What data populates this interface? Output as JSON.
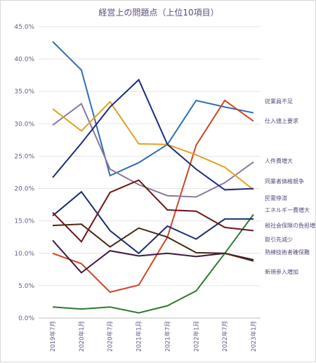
{
  "chart_data": {
    "type": "line",
    "title": "経営上の問題点（上位10項目）",
    "categories": [
      "2019年7月",
      "2020年1月",
      "2020年7月",
      "2021年1月",
      "2021年7月",
      "2022年1月",
      "2022年7月",
      "2023年1月"
    ],
    "ylim": [
      0,
      45
    ],
    "yticks": [
      "0.0%",
      "5.0%",
      "10.0%",
      "15.0%",
      "20.0%",
      "25.0%",
      "30.0%",
      "35.0%",
      "40.0%",
      "45.0%"
    ],
    "grid": true,
    "legend": "right, labels at line ends",
    "series": [
      {
        "name": "従業員不足",
        "color": "#2e6db4",
        "values": [
          42.7,
          38.3,
          22.0,
          24.0,
          26.8,
          33.6,
          32.6,
          31.7
        ]
      },
      {
        "name": "仕入値上要求",
        "color": "#d04527",
        "values": [
          10.0,
          8.4,
          4.0,
          5.1,
          12.5,
          26.7,
          33.6,
          30.4
        ]
      },
      {
        "name": "人件費増大",
        "color": "#8a7a9e",
        "values": [
          29.8,
          33.1,
          23.0,
          20.6,
          18.9,
          18.7,
          20.9,
          24.1
        ]
      },
      {
        "name": "同業者価格競争",
        "color": "#e5a020",
        "values": [
          32.3,
          28.9,
          33.4,
          26.9,
          26.8,
          25.2,
          23.3,
          19.8
        ]
      },
      {
        "name": "民需停滞",
        "color": "#1b2a80",
        "values": [
          21.7,
          27.0,
          32.6,
          36.8,
          26.8,
          23.0,
          19.8,
          20.0
        ]
      },
      {
        "name": "エネルギー費増大",
        "color": "#2f7a2f",
        "values": [
          1.7,
          1.4,
          1.7,
          0.8,
          1.9,
          4.2,
          10.0,
          16.0
        ]
      },
      {
        "name": "税社会保険の負担増",
        "color": "#1a2e6e",
        "values": [
          15.8,
          19.5,
          13.5,
          10.0,
          14.2,
          12.2,
          15.3,
          15.3
        ]
      },
      {
        "name": "取引先減少",
        "color": "#6e1618",
        "values": [
          16.3,
          11.8,
          19.4,
          21.3,
          16.7,
          16.5,
          14.0,
          13.5
        ]
      },
      {
        "name": "熟練技術者確保難",
        "color": "#3e1a40",
        "values": [
          12.0,
          7.0,
          10.4,
          9.6,
          10.0,
          9.5,
          10.0,
          9.0
        ]
      },
      {
        "name": "新規参入増加",
        "color": "#4a2810",
        "values": [
          14.3,
          14.5,
          11.0,
          13.9,
          12.5,
          10.1,
          10.0,
          8.8
        ]
      }
    ]
  }
}
